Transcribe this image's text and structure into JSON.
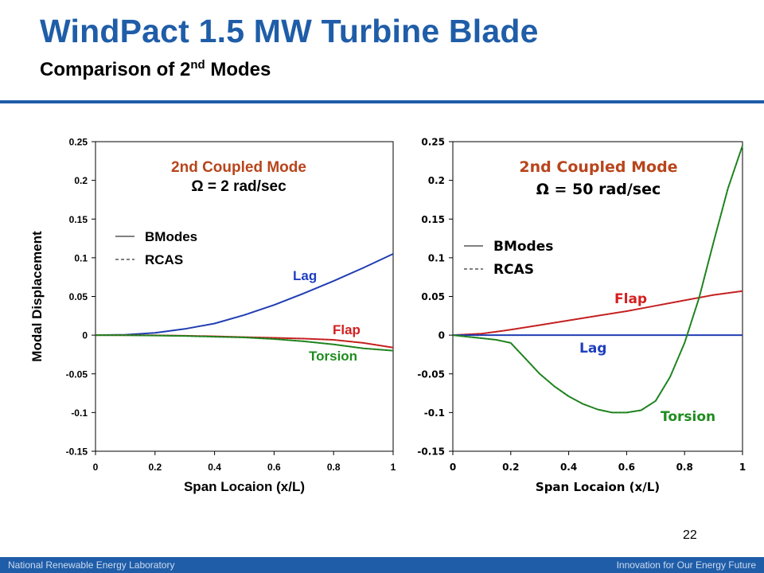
{
  "slide": {
    "title": "WindPact 1.5 MW Turbine Blade",
    "subtitle_main": "Comparison of 2",
    "subtitle_sup": "nd",
    "subtitle_rest": " Modes",
    "page_number": "22",
    "footer_left": "National Renewable Energy Laboratory",
    "footer_right": "Innovation for Our Energy Future",
    "colors": {
      "brand_blue": "#1f5da8"
    }
  },
  "chart_data": [
    {
      "type": "line",
      "title": "2nd Coupled Mode",
      "subtitle": "Ω = 2 rad/sec",
      "xlabel": "Span Locaion (x/L)",
      "ylabel": "Modal Displacement",
      "xlim": [
        0,
        1
      ],
      "ylim": [
        -0.15,
        0.25
      ],
      "xticks": [
        "0",
        "0.2",
        "0.4",
        "0.6",
        "0.8",
        "1"
      ],
      "yticks": [
        "0.25",
        "0.2",
        "0.15",
        "0.1",
        "0.05",
        "0",
        "-0.05",
        "-0.1",
        "-0.15"
      ],
      "grid": false,
      "legend_placement": "upper-left",
      "legend": [
        {
          "label": "BModes",
          "style": "solid"
        },
        {
          "label": "RCAS",
          "style": "dashed"
        }
      ],
      "series": [
        {
          "name": "Lag",
          "color": "#1f3fbf",
          "x": [
            0,
            0.1,
            0.2,
            0.3,
            0.4,
            0.5,
            0.6,
            0.7,
            0.8,
            0.9,
            1.0
          ],
          "y": [
            0,
            0.0005,
            0.003,
            0.008,
            0.015,
            0.026,
            0.039,
            0.054,
            0.07,
            0.087,
            0.105
          ]
        },
        {
          "name": "Flap",
          "color": "#d42020",
          "x": [
            0,
            0.1,
            0.2,
            0.3,
            0.4,
            0.5,
            0.6,
            0.7,
            0.8,
            0.9,
            1.0
          ],
          "y": [
            0,
            0,
            -0.0003,
            -0.0008,
            -0.0015,
            -0.0025,
            -0.0035,
            -0.0045,
            -0.006,
            -0.01,
            -0.016
          ]
        },
        {
          "name": "Torsion",
          "color": "#1f8c1f",
          "x": [
            0,
            0.1,
            0.2,
            0.3,
            0.4,
            0.5,
            0.6,
            0.7,
            0.8,
            0.9,
            1.0
          ],
          "y": [
            0,
            -0.0002,
            -0.0005,
            -0.001,
            -0.002,
            -0.003,
            -0.005,
            -0.008,
            -0.012,
            -0.017,
            -0.02
          ]
        }
      ]
    },
    {
      "type": "line",
      "title": "2nd Coupled Mode",
      "subtitle": "Ω = 50 rad/sec",
      "xlabel": "Span Locaion (x/L)",
      "ylabel": "",
      "xlim": [
        0,
        1
      ],
      "ylim": [
        -0.15,
        0.25
      ],
      "xticks": [
        "0",
        "0.2",
        "0.4",
        "0.6",
        "0.8",
        "1"
      ],
      "yticks": [
        "0.25",
        "0.2",
        "0.15",
        "0.1",
        "0.05",
        "0",
        "-0.05",
        "-0.1",
        "-0.15"
      ],
      "grid": false,
      "legend_placement": "upper-left",
      "legend": [
        {
          "label": "BModes",
          "style": "solid"
        },
        {
          "label": "RCAS",
          "style": "dashed"
        }
      ],
      "series": [
        {
          "name": "Flap",
          "color": "#d42020",
          "x": [
            0,
            0.1,
            0.2,
            0.3,
            0.4,
            0.5,
            0.6,
            0.7,
            0.8,
            0.9,
            1.0
          ],
          "y": [
            0,
            0.002,
            0.007,
            0.013,
            0.019,
            0.025,
            0.031,
            0.038,
            0.045,
            0.052,
            0.057
          ]
        },
        {
          "name": "Lag",
          "color": "#1f3fbf",
          "x": [
            0,
            0.1,
            0.2,
            0.3,
            0.4,
            0.5,
            0.6,
            0.7,
            0.8,
            0.9,
            1.0
          ],
          "y": [
            0,
            0,
            0,
            0,
            0,
            0,
            0,
            0,
            0,
            0,
            0
          ]
        },
        {
          "name": "Torsion",
          "color": "#1f8c1f",
          "x": [
            0,
            0.05,
            0.1,
            0.15,
            0.2,
            0.25,
            0.3,
            0.35,
            0.4,
            0.45,
            0.5,
            0.55,
            0.6,
            0.65,
            0.7,
            0.75,
            0.8,
            0.85,
            0.9,
            0.95,
            1.0
          ],
          "y": [
            0,
            -0.002,
            -0.004,
            -0.006,
            -0.01,
            -0.03,
            -0.05,
            -0.066,
            -0.079,
            -0.089,
            -0.096,
            -0.1,
            -0.1,
            -0.097,
            -0.085,
            -0.054,
            -0.01,
            0.048,
            0.12,
            0.19,
            0.245
          ]
        }
      ]
    }
  ]
}
